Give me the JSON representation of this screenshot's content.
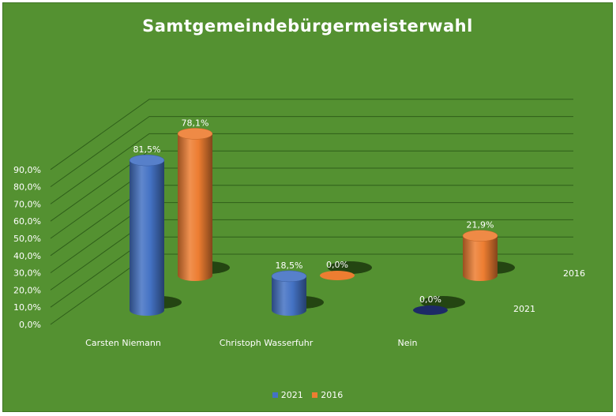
{
  "chart_data": {
    "type": "bar",
    "title": "Samtgemeindebürgermeisterwahl",
    "categories": [
      "Carsten Niemann",
      "Christoph Wasserfuhr",
      "Nein"
    ],
    "series": [
      {
        "name": "2021",
        "values": [
          81.5,
          18.5,
          0.0
        ],
        "labels": [
          "81,5%",
          "18,5%",
          "0,0%"
        ],
        "color": "#4472c4"
      },
      {
        "name": "2016",
        "values": [
          78.1,
          0.0,
          21.9
        ],
        "labels": [
          "78,1%",
          "0,0%",
          "21,9%"
        ],
        "color": "#ed7d31"
      }
    ],
    "ylim": [
      0,
      90
    ],
    "yticks": [
      "0,0%",
      "10,0%",
      "20,0%",
      "30,0%",
      "40,0%",
      "50,0%",
      "60,0%",
      "70,0%",
      "80,0%",
      "90,0%"
    ],
    "xlabel": "",
    "ylabel": "",
    "grid": true,
    "legend_position": "bottom",
    "style": "3d-cylinder"
  },
  "colors": {
    "background": "#549131",
    "gridline": "#2f5f1a"
  }
}
